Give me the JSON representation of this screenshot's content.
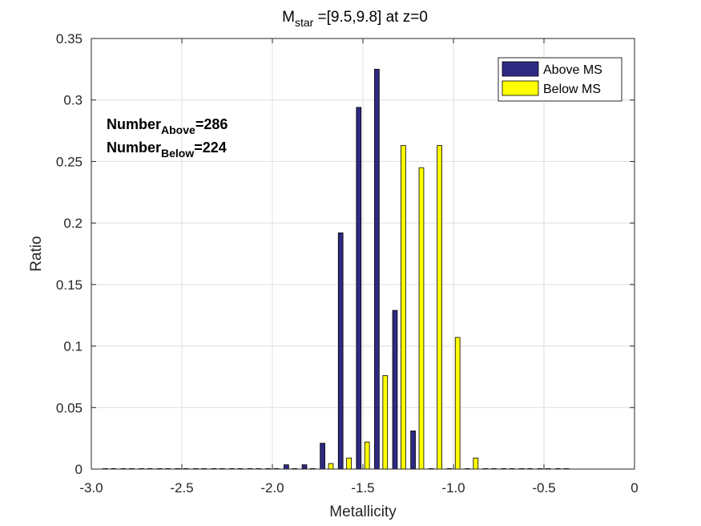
{
  "chart_data": {
    "type": "bar",
    "title_main": "M",
    "title_sub": "star",
    "title_rest": " =[9.5,9.8] at z=0",
    "xlabel": "Metallicity",
    "ylabel": "Ratio",
    "xlim": [
      -3.0,
      0
    ],
    "ylim": [
      0,
      0.35
    ],
    "xticks": [
      -3.0,
      -2.5,
      -2.0,
      -1.5,
      -1.0,
      -0.5,
      0
    ],
    "xtick_labels": [
      "-3.0",
      "-2.5",
      "-2.0",
      "-1.5",
      "-1.0",
      "-0.5",
      "0"
    ],
    "yticks": [
      0,
      0.05,
      0.1,
      0.15,
      0.2,
      0.25,
      0.3,
      0.35
    ],
    "ytick_labels": [
      "0",
      "0.05",
      "0.1",
      "0.15",
      "0.2",
      "0.25",
      "0.3",
      "0.35"
    ],
    "grid": true,
    "legend_position": "top-right",
    "bin_centers": [
      -2.9,
      -2.8,
      -2.7,
      -2.6,
      -2.5,
      -2.4,
      -2.3,
      -2.2,
      -2.1,
      -2.0,
      -1.9,
      -1.8,
      -1.7,
      -1.6,
      -1.5,
      -1.4,
      -1.3,
      -1.2,
      -1.1,
      -1.0,
      -0.9,
      -0.8,
      -0.7,
      -0.6,
      -0.5,
      -0.4
    ],
    "series": [
      {
        "name": "Above MS",
        "color": "#2e2a83",
        "values": [
          0,
          0,
          0,
          0,
          0,
          0,
          0,
          0,
          0,
          0,
          0.0035,
          0.0035,
          0.021,
          0.192,
          0.294,
          0.325,
          0.129,
          0.031,
          0,
          0,
          0,
          0,
          0,
          0,
          0,
          0
        ]
      },
      {
        "name": "Below MS",
        "color": "#ffff00",
        "values": [
          0,
          0,
          0,
          0,
          0,
          0,
          0,
          0,
          0,
          0,
          0,
          0,
          0.0045,
          0.009,
          0.022,
          0.076,
          0.263,
          0.245,
          0.263,
          0.107,
          0.009,
          0,
          0,
          0,
          0,
          0
        ]
      }
    ],
    "annotations": [
      {
        "main": "Number",
        "sub": "Above",
        "rest": "=286"
      },
      {
        "main": "Number",
        "sub": "Below",
        "rest": "=224"
      }
    ]
  }
}
